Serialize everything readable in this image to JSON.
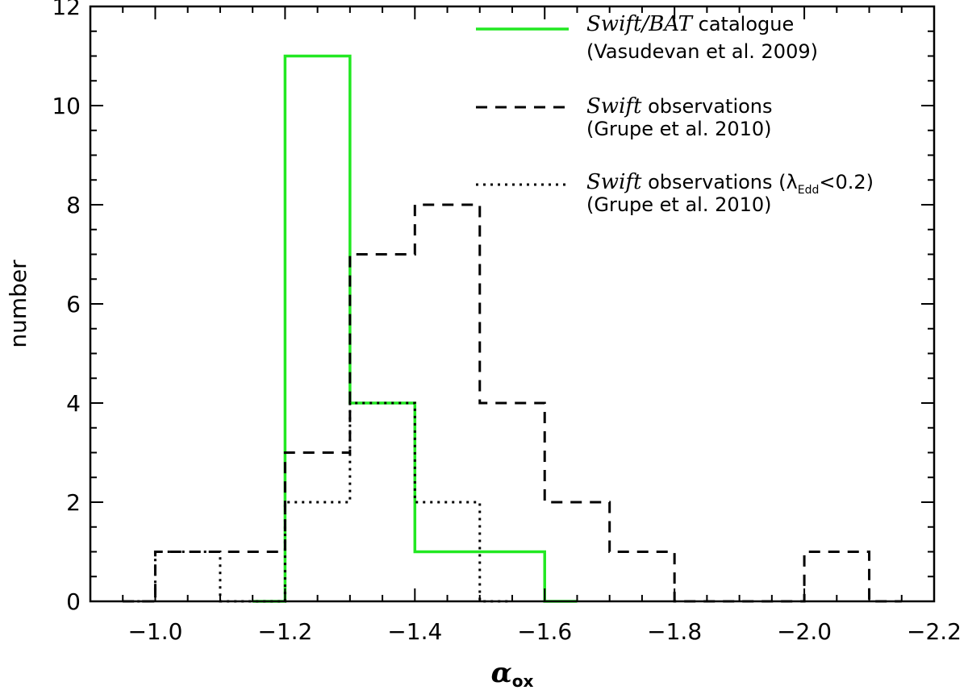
{
  "chart_data": {
    "type": "histogram",
    "xlabel": "α",
    "xlabel_sub": "ox",
    "ylabel": "number",
    "xlim": [
      -0.9,
      -2.2
    ],
    "ylim": [
      0,
      12
    ],
    "x_ticks": [
      -1.0,
      -1.2,
      -1.4,
      -1.6,
      -1.8,
      -2.0,
      -2.2
    ],
    "x_tick_labels": [
      "−1.0",
      "−1.2",
      "−1.4",
      "−1.6",
      "−1.8",
      "−2.0",
      "−2.2"
    ],
    "y_ticks": [
      0,
      2,
      4,
      6,
      8,
      10,
      12
    ],
    "y_tick_labels": [
      "0",
      "2",
      "4",
      "6",
      "8",
      "10",
      "12"
    ],
    "legend_position": "top-right",
    "bin_edges": [
      -0.9,
      -1.0,
      -1.1,
      -1.2,
      -1.3,
      -1.4,
      -1.5,
      -1.6,
      -1.7,
      -1.8,
      -1.9,
      -2.0,
      -2.1,
      -2.2
    ],
    "series": [
      {
        "style": "solid",
        "color": "#22e822",
        "bin_edges": [
          -1.15,
          -1.2,
          -1.3,
          -1.4,
          -1.5,
          -1.6,
          -1.65
        ],
        "counts": [
          0,
          11,
          4,
          1,
          1,
          0
        ],
        "legend": {
          "italic_lines": [
            "Swift/BAT"
          ],
          "line1_rest": " catalogue",
          "line2": "(Vasudevan et al. 2009)"
        }
      },
      {
        "style": "dashed",
        "color": "#000000",
        "bin_edges": [
          -0.95,
          -1.0,
          -1.1,
          -1.2,
          -1.3,
          -1.4,
          -1.5,
          -1.6,
          -1.7,
          -1.8,
          -1.9,
          -2.0,
          -2.1,
          -2.15
        ],
        "counts": [
          0,
          1,
          1,
          3,
          7,
          8,
          4,
          2,
          1,
          0,
          0,
          1,
          0
        ],
        "legend": {
          "italic_lines": [
            "Swift"
          ],
          "line1_rest": " observations",
          "line2": "(Grupe et al. 2010)"
        }
      },
      {
        "style": "dotted",
        "color": "#000000",
        "bin_edges": [
          -0.95,
          -1.0,
          -1.1,
          -1.2,
          -1.3,
          -1.4,
          -1.5,
          -1.55
        ],
        "counts": [
          0,
          1,
          0,
          2,
          4,
          2,
          0
        ],
        "legend": {
          "italic_lines": [
            "Swift"
          ],
          "line1_rest": " observations (",
          "lambda_symbol": "λ",
          "lambda_sub": "Edd",
          "lambda_rest": "<0.2)",
          "line2": "(Grupe et al. 2010)"
        }
      }
    ]
  }
}
